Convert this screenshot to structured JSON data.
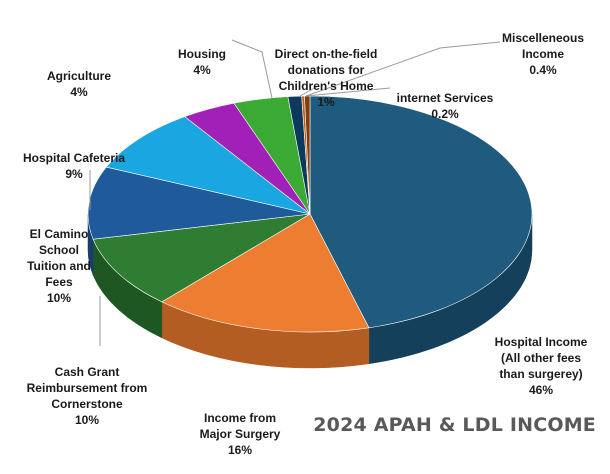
{
  "chart_data": {
    "type": "pie",
    "title": "2024 APAH & LDL INCOME",
    "slices": [
      {
        "label": "Hospital Income\n(All other fees\nthan surgerey)",
        "value": 46,
        "value_label": "46%",
        "color": "#1f5a7f",
        "side": "#15405b"
      },
      {
        "label": "Income from\nMajor Surgery",
        "value": 16,
        "value_label": "16%",
        "color": "#ed7d31",
        "side": "#b35d23"
      },
      {
        "label": "Cash Grant\nReimbursement from\nCornerstone",
        "value": 10,
        "value_label": "10%",
        "color": "#2e7d32",
        "side": "#1f5722"
      },
      {
        "label": "El Camino\nSchool\nTuition and\nFees",
        "value": 10,
        "value_label": "10%",
        "color": "#1f5a9a",
        "side": "#163f6c"
      },
      {
        "label": "Hospital Cafeteria",
        "value": 9,
        "value_label": "9%",
        "color": "#1aa6e0",
        "side": "#1377a1"
      },
      {
        "label": "Agriculture",
        "value": 4,
        "value_label": "4%",
        "color": "#a020b8",
        "side": "#711783"
      },
      {
        "label": "Housing",
        "value": 4,
        "value_label": "4%",
        "color": "#3aaa35",
        "side": "#287825"
      },
      {
        "label": "Direct on-the-field\ndonations for\nChildren's Home",
        "value": 1,
        "value_label": "1%",
        "color": "#0d3a5c",
        "side": "#0a2a42"
      },
      {
        "label": "internet Services",
        "value": 0.2,
        "value_label": "0.2%",
        "color": "#c55a11",
        "side": "#8c400c"
      },
      {
        "label": "Miscelleneous\nIncome",
        "value": 0.4,
        "value_label": "0.4%",
        "color": "#7f3f10",
        "side": "#5a2c0b"
      }
    ]
  }
}
